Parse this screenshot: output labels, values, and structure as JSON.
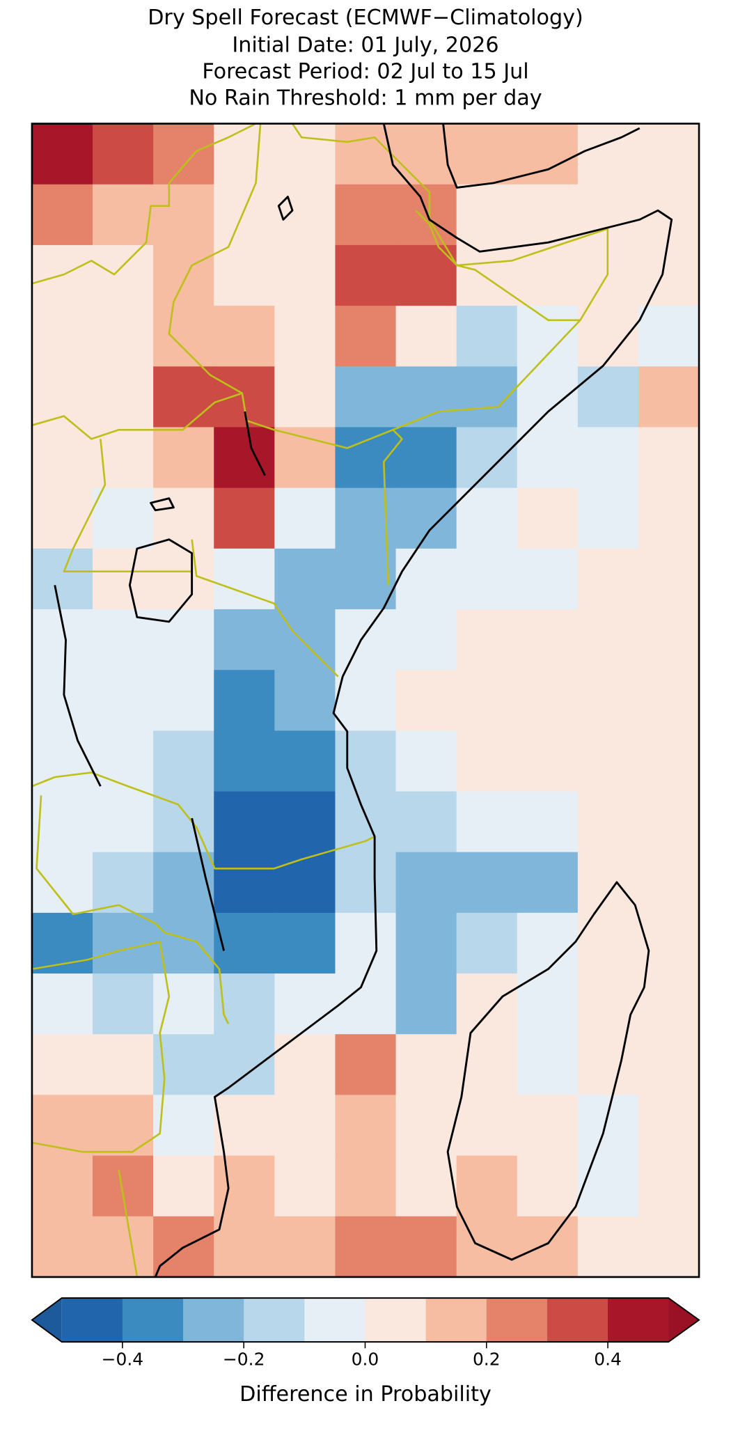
{
  "chart_data": {
    "type": "raster",
    "title": [
      "Dry Spell Forecast (ECMWF−Climatology)",
      "Initial Date: 01 July, 2026",
      "Forecast Period: 02 Jul to 15 Jul",
      "No Rain Threshold: 1 mm per day"
    ],
    "values": [
      [
        0.45,
        0.35,
        0.2,
        0.05,
        0.05,
        0.15,
        0.1,
        0.15,
        0.1,
        0.05,
        0.05
      ],
      [
        0.25,
        0.15,
        0.1,
        0.05,
        0.05,
        0.25,
        0.2,
        0.05,
        0.0,
        0.0,
        0.05
      ],
      [
        0.05,
        0.05,
        0.1,
        0.05,
        0.05,
        0.3,
        0.3,
        0.05,
        0.0,
        0.0,
        0.0
      ],
      [
        0.05,
        0.05,
        0.15,
        0.1,
        0.05,
        0.2,
        0.05,
        -0.2,
        -0.05,
        0.0,
        -0.05
      ],
      [
        0.0,
        0.05,
        0.35,
        0.35,
        0.05,
        -0.25,
        -0.3,
        -0.25,
        -0.05,
        -0.2,
        0.15
      ],
      [
        0.05,
        0.0,
        0.15,
        0.45,
        0.1,
        -0.35,
        -0.35,
        -0.2,
        -0.1,
        -0.05,
        0.05
      ],
      [
        0.0,
        -0.05,
        0.05,
        0.3,
        -0.05,
        -0.3,
        -0.25,
        -0.05,
        0.0,
        -0.05,
        0.0
      ],
      [
        -0.15,
        0.0,
        0.05,
        -0.1,
        -0.25,
        -0.3,
        -0.05,
        -0.1,
        -0.05,
        0.0,
        0.0
      ],
      [
        -0.1,
        -0.05,
        -0.05,
        -0.3,
        -0.3,
        -0.05,
        -0.05,
        0.0,
        0.0,
        0.0,
        0.0
      ],
      [
        -0.05,
        -0.1,
        -0.1,
        -0.35,
        -0.25,
        -0.1,
        0.0,
        0.0,
        0.0,
        0.0,
        0.0
      ],
      [
        -0.1,
        -0.1,
        -0.2,
        -0.4,
        -0.35,
        -0.15,
        -0.05,
        0.0,
        0.05,
        0.05,
        0.0
      ],
      [
        -0.1,
        -0.1,
        -0.2,
        -0.45,
        -0.45,
        -0.2,
        -0.15,
        -0.1,
        -0.05,
        0.05,
        0.0
      ],
      [
        -0.1,
        -0.15,
        -0.3,
        -0.45,
        -0.45,
        -0.15,
        -0.25,
        -0.3,
        -0.3,
        0.0,
        0.0
      ],
      [
        -0.35,
        -0.3,
        -0.3,
        -0.4,
        -0.35,
        -0.1,
        -0.25,
        -0.15,
        -0.1,
        0.0,
        0.0
      ],
      [
        -0.1,
        -0.15,
        -0.1,
        -0.15,
        -0.1,
        -0.05,
        -0.3,
        0.05,
        -0.05,
        0.0,
        0.0
      ],
      [
        0.05,
        0.0,
        -0.2,
        -0.15,
        0.0,
        0.2,
        0.05,
        0.0,
        -0.05,
        0.0,
        0.0
      ],
      [
        0.15,
        0.1,
        -0.1,
        0.0,
        0.05,
        0.15,
        0.05,
        0.0,
        0.0,
        -0.05,
        0.0
      ],
      [
        0.1,
        0.25,
        0.05,
        0.1,
        0.05,
        0.1,
        0.05,
        0.15,
        0.0,
        -0.1,
        0.0
      ],
      [
        0.1,
        0.15,
        0.2,
        0.15,
        0.1,
        0.2,
        0.25,
        0.15,
        0.15,
        0.0,
        0.05
      ]
    ],
    "colorbar": {
      "levels": [
        -0.5,
        -0.4,
        -0.3,
        -0.2,
        -0.1,
        0.0,
        0.1,
        0.2,
        0.3,
        0.4,
        0.5
      ],
      "colors": [
        "#2166ac",
        "#3c8bc0",
        "#7fb6d9",
        "#b9d7ea",
        "#e6eff5",
        "#fae8df",
        "#f6bda3",
        "#e4826a",
        "#cc4b45",
        "#a8162a"
      ],
      "extend_colors": [
        "#1d5a9c",
        "#9a1024"
      ],
      "ticks": [
        {
          "value": -0.4,
          "label": "−0.4"
        },
        {
          "value": -0.2,
          "label": "−0.2"
        },
        {
          "value": 0,
          "label": "0.0"
        },
        0.2,
        0.4
      ],
      "label": "Difference in Probability"
    }
  }
}
